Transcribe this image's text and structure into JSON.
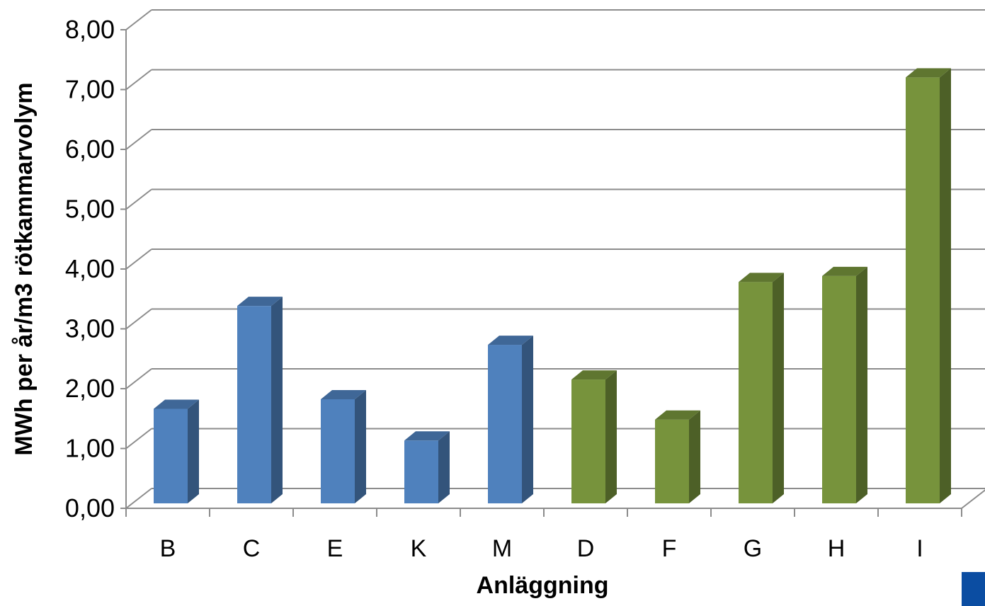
{
  "chart_data": {
    "type": "bar",
    "title": "",
    "xlabel": "Anläggning",
    "ylabel": "MWh per år/m3 rötkammarvolym",
    "categories": [
      "B",
      "C",
      "E",
      "K",
      "M",
      "D",
      "F",
      "G",
      "H",
      "I"
    ],
    "values": [
      1.58,
      3.3,
      1.74,
      1.05,
      2.65,
      2.07,
      1.4,
      3.7,
      3.8,
      7.12
    ],
    "bar_colors": [
      "#4F81BD",
      "#4F81BD",
      "#4F81BD",
      "#4F81BD",
      "#4F81BD",
      "#77933C",
      "#77933C",
      "#77933C",
      "#77933C",
      "#77933C"
    ],
    "ylim": [
      0,
      8
    ],
    "yticks": [
      "0,00",
      "1,00",
      "2,00",
      "3,00",
      "4,00",
      "5,00",
      "6,00",
      "7,00",
      "8,00"
    ],
    "grid": true,
    "legend": "none",
    "style": "3d-column"
  },
  "colors": {
    "blue": "#4F81BD",
    "green": "#77933C",
    "grid": "#8C8C8C",
    "corner_mark": "#0B4DA2"
  }
}
